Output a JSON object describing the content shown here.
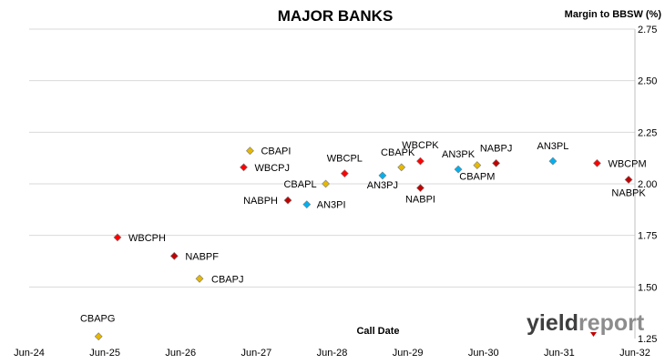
{
  "chart_data": {
    "type": "scatter",
    "title": "MAJOR BANKS",
    "xlabel": "Call Date",
    "ylabel": "Margin to BBSW (%)",
    "x_ticks": [
      "Jun-24",
      "Jun-25",
      "Jun-26",
      "Jun-27",
      "Jun-28",
      "Jun-29",
      "Jun-30",
      "Jun-31",
      "Jun-32"
    ],
    "y_ticks": [
      "1.25",
      "1.50",
      "1.75",
      "2.00",
      "2.25",
      "2.50",
      "2.75"
    ],
    "xlim": [
      2024.5,
      2032.5
    ],
    "ylim": [
      1.25,
      2.75
    ],
    "grid": "horizontal",
    "y_axis_side": "right",
    "colors": {
      "CBA": "#e6b800",
      "WBC": "#ff0000",
      "NAB": "#c00000",
      "ANZ": "#00b0f0"
    },
    "points": [
      {
        "name": "CBAPG",
        "bank": "CBA",
        "x": "2025-06",
        "y": 1.26
      },
      {
        "name": "WBCPH",
        "bank": "WBC",
        "x": "2025-09",
        "y": 1.74
      },
      {
        "name": "NABPF",
        "bank": "NAB",
        "x": "2026-06",
        "y": 1.65
      },
      {
        "name": "CBAPJ",
        "bank": "CBA",
        "x": "2026-10",
        "y": 1.54
      },
      {
        "name": "WBCPJ",
        "bank": "WBC",
        "x": "2027-05",
        "y": 2.08
      },
      {
        "name": "CBAPI",
        "bank": "CBA",
        "x": "2027-06",
        "y": 2.16
      },
      {
        "name": "NABPH",
        "bank": "NAB",
        "x": "2027-12",
        "y": 1.92
      },
      {
        "name": "AN3PI",
        "bank": "ANZ",
        "x": "2028-03",
        "y": 1.9
      },
      {
        "name": "CBAPL",
        "bank": "CBA",
        "x": "2028-06",
        "y": 2.0
      },
      {
        "name": "WBCPL",
        "bank": "WBC",
        "x": "2028-09",
        "y": 2.05
      },
      {
        "name": "AN3PJ",
        "bank": "ANZ",
        "x": "2029-03",
        "y": 2.04
      },
      {
        "name": "CBAPK",
        "bank": "CBA",
        "x": "2029-06",
        "y": 2.08
      },
      {
        "name": "WBCPK",
        "bank": "WBC",
        "x": "2029-09",
        "y": 2.11
      },
      {
        "name": "NABPI",
        "bank": "NAB",
        "x": "2029-09",
        "y": 1.98
      },
      {
        "name": "AN3PK",
        "bank": "ANZ",
        "x": "2030-03",
        "y": 2.07
      },
      {
        "name": "CBAPM",
        "bank": "CBA",
        "x": "2030-06",
        "y": 2.09
      },
      {
        "name": "NABPJ",
        "bank": "NAB",
        "x": "2030-09",
        "y": 2.1
      },
      {
        "name": "AN3PL",
        "bank": "ANZ",
        "x": "2031-06",
        "y": 2.11
      },
      {
        "name": "WBCPM",
        "bank": "WBC",
        "x": "2032-01",
        "y": 2.1
      },
      {
        "name": "NABPK",
        "bank": "NAB",
        "x": "2032-06",
        "y": 2.02
      }
    ]
  },
  "logo": {
    "part1": "yield",
    "part2": "report"
  }
}
